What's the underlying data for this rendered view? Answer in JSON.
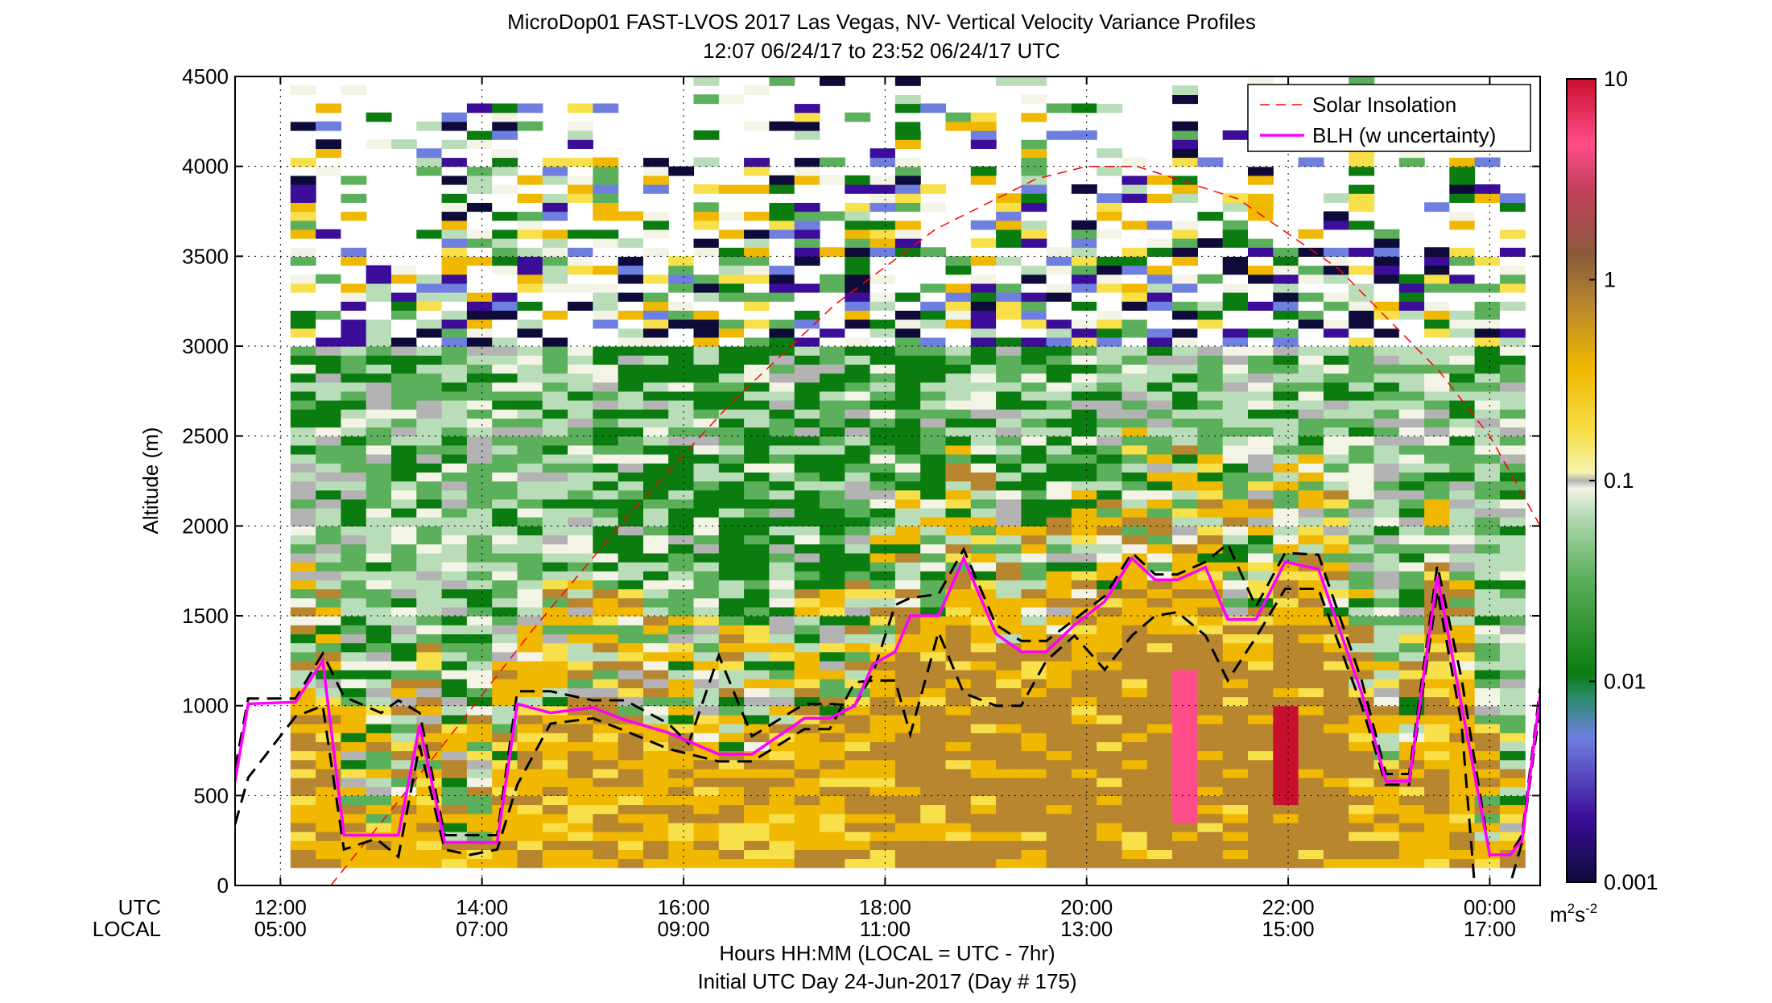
{
  "chart_data": {
    "type": "heatmap",
    "title": "MicroDop01 FAST-LVOS 2017 Las Vegas, NV- Vertical Velocity Variance Profiles",
    "subtitle": "12:07 06/24/17 to 23:52 06/24/17  UTC",
    "xlabel": "Hours HH:MM  (LOCAL = UTC - 7hr)",
    "xlabel2": "Initial UTC Day 24-Jun-2017 (Day # 175)",
    "ylabel": "Altitude (m)",
    "xlim": [
      11.55,
      24.5
    ],
    "ylim": [
      0,
      4500
    ],
    "grid": true,
    "x_ticks_utc": [
      "12:00",
      "14:00",
      "16:00",
      "18:00",
      "20:00",
      "22:00",
      "00:00"
    ],
    "x_ticks_local": [
      "05:00",
      "07:00",
      "09:00",
      "11:00",
      "13:00",
      "15:00",
      "17:00"
    ],
    "x_tick_hours": [
      12,
      14,
      16,
      18,
      20,
      22,
      24
    ],
    "row_label_utc": "UTC",
    "row_label_local": "LOCAL",
    "y_ticks": [
      0,
      500,
      1000,
      1500,
      2000,
      2500,
      3000,
      3500,
      4000,
      4500
    ],
    "colorbar": {
      "scale": "log",
      "range": [
        0.001,
        10
      ],
      "tick_labels": [
        "10",
        "1",
        "0.1",
        "0.01",
        "0.001"
      ],
      "unit_main": "m",
      "unit_sup1": "2",
      "unit_mid": "s",
      "unit_sup2": "-2",
      "colors": [
        "#0e0b3a",
        "#3b0d99",
        "#6f7fe0",
        "#2b8a6e",
        "#0b7d10",
        "#5cb05c",
        "#b9dcb9",
        "#f4f4e6",
        "#b3b3b3",
        "#f7e04a",
        "#f0b800",
        "#b7862e",
        "#8a5a3a",
        "#e0287a",
        "#ff4d8a",
        "#c8102e"
      ]
    },
    "legend": {
      "placement": "top-right",
      "entries": [
        {
          "name": "Solar Insolation",
          "color": "#ff0000",
          "style": "dashed"
        },
        {
          "name": "BLH (w uncertainty)",
          "color": "#ff00ff",
          "style": "solid"
        }
      ]
    },
    "blh": {
      "x": [
        11.55,
        11.68,
        12.15,
        12.42,
        12.63,
        13.17,
        13.38,
        13.63,
        14.15,
        14.35,
        14.68,
        15.1,
        15.42,
        15.85,
        16.35,
        16.68,
        17.2,
        17.45,
        17.7,
        17.88,
        18.1,
        18.25,
        18.53,
        18.78,
        19.1,
        19.35,
        19.6,
        19.88,
        20.18,
        20.45,
        20.68,
        20.9,
        21.18,
        21.4,
        21.68,
        21.97,
        22.3,
        22.73,
        22.97,
        23.2,
        23.48,
        23.72,
        24.0,
        24.2,
        24.32,
        24.5
      ],
      "values": [
        580,
        1010,
        1020,
        1250,
        280,
        280,
        890,
        240,
        240,
        1010,
        960,
        990,
        920,
        850,
        730,
        730,
        930,
        930,
        1000,
        1230,
        1300,
        1500,
        1500,
        1820,
        1400,
        1300,
        1300,
        1450,
        1580,
        1820,
        1700,
        1700,
        1770,
        1480,
        1480,
        1800,
        1760,
        1070,
        580,
        580,
        1720,
        1000,
        170,
        170,
        250,
        1060
      ]
    },
    "blh_upper": {
      "x": [
        11.55,
        11.68,
        12.15,
        12.42,
        12.63,
        13.0,
        13.17,
        13.38,
        13.63,
        14.15,
        14.35,
        14.68,
        15.1,
        15.42,
        15.85,
        16.05,
        16.35,
        16.68,
        17.2,
        17.45,
        17.7,
        17.88,
        18.1,
        18.25,
        18.53,
        18.78,
        19.1,
        19.35,
        19.6,
        19.88,
        20.18,
        20.45,
        20.68,
        20.9,
        21.18,
        21.4,
        21.68,
        21.97,
        22.3,
        22.73,
        22.97,
        23.2,
        23.48,
        23.72,
        24.0,
        24.2,
        24.32,
        24.5
      ],
      "values": [
        650,
        1040,
        1040,
        1290,
        1050,
        960,
        1030,
        960,
        280,
        280,
        1080,
        1080,
        1030,
        1030,
        900,
        790,
        1280,
        830,
        1010,
        1010,
        1000,
        1180,
        1560,
        1600,
        1620,
        1870,
        1450,
        1360,
        1360,
        1480,
        1610,
        1850,
        1730,
        1730,
        1800,
        1900,
        1550,
        1850,
        1840,
        1140,
        620,
        620,
        1780,
        1150,
        170,
        170,
        280,
        1100
      ]
    },
    "blh_lower": {
      "x": [
        11.55,
        11.68,
        12.15,
        12.42,
        12.63,
        12.95,
        13.17,
        13.38,
        13.63,
        13.88,
        14.15,
        14.35,
        14.68,
        15.1,
        15.42,
        15.85,
        16.35,
        16.68,
        17.2,
        17.45,
        17.7,
        17.88,
        18.1,
        18.25,
        18.53,
        18.78,
        19.1,
        19.35,
        19.6,
        19.88,
        20.18,
        20.45,
        20.68,
        20.9,
        21.18,
        21.4,
        21.68,
        21.97,
        22.3,
        22.73,
        22.97,
        23.2,
        23.48,
        23.72,
        23.85,
        24.0,
        24.2,
        24.32,
        24.5
      ],
      "values": [
        340,
        600,
        940,
        1000,
        200,
        260,
        160,
        780,
        200,
        170,
        200,
        560,
        900,
        930,
        860,
        760,
        690,
        690,
        870,
        870,
        1130,
        1140,
        1140,
        840,
        1410,
        1070,
        1000,
        1000,
        1250,
        1390,
        1200,
        1390,
        1500,
        1520,
        1390,
        1140,
        1380,
        1650,
        1650,
        1000,
        560,
        560,
        1640,
        900,
        0,
        -40,
        0,
        240,
        1000
      ]
    },
    "solar_insolation": {
      "x": [
        12.5,
        13.5,
        14.5,
        15.5,
        16.5,
        17.5,
        18.5,
        19.5,
        20.0,
        20.5,
        21.5,
        22.5,
        23.5,
        24.0,
        24.5
      ],
      "values": [
        0,
        700,
        1420,
        2090,
        2700,
        3230,
        3650,
        3930,
        4000,
        4000,
        3820,
        3430,
        2860,
        2500,
        2000
      ]
    }
  }
}
